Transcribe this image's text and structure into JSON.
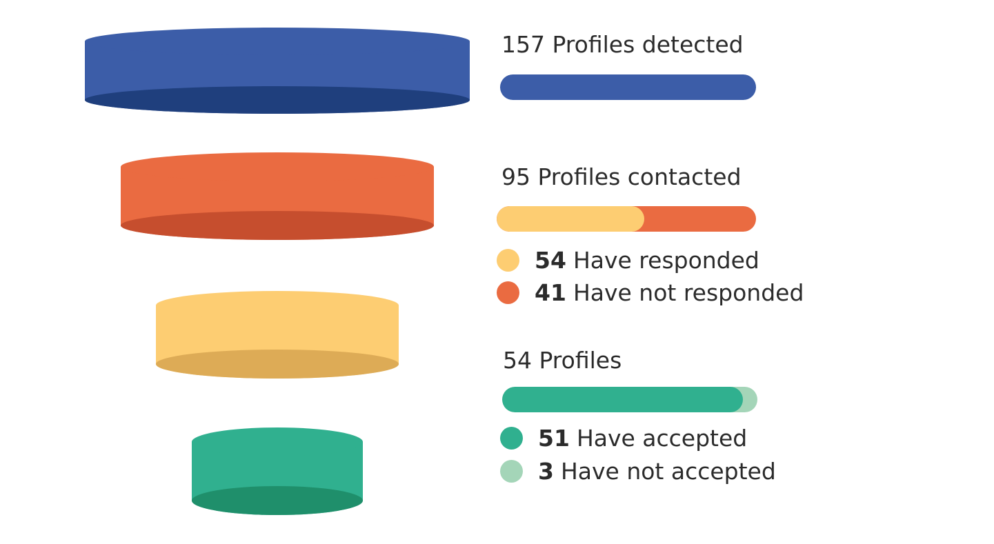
{
  "colors": {
    "blue": "#3c5da8",
    "blue_dark": "#1f3f7d",
    "orange": "#ea6b41",
    "orange_dark": "#c64e2e",
    "yellow": "#fdcd72",
    "yellow_dark": "#ddab56",
    "green": "#30b08f",
    "green_dark": "#1f8f6b",
    "light_green": "#a4d5b8"
  },
  "stages": [
    {
      "title": "157 Profiles detected",
      "total": 157,
      "color": "#3c5da8",
      "dark_color": "#1f3f7d",
      "segments": [
        {
          "value": 157,
          "color": "#3c5da8"
        }
      ],
      "legend": []
    },
    {
      "title": "95 Profiles contacted",
      "total": 95,
      "color": "#ea6b41",
      "dark_color": "#c64e2e",
      "segments": [
        {
          "value": 54,
          "color": "#fdcd72"
        },
        {
          "value": 41,
          "color": "#ea6b41"
        }
      ],
      "legend": [
        {
          "number": "54",
          "text": "Have responded",
          "color": "#fdcd72"
        },
        {
          "number": "41",
          "text": "Have not responded",
          "color": "#ea6b41"
        }
      ]
    },
    {
      "title": "54 Profiles",
      "total": 54,
      "color": "#fdcd72",
      "dark_color": "#ddab56",
      "segments": [
        {
          "value": 51,
          "color": "#30b08f"
        },
        {
          "value": 3,
          "color": "#a4d5b8"
        }
      ],
      "legend": [
        {
          "number": "51",
          "text": "Have accepted",
          "color": "#30b08f"
        },
        {
          "number": "3",
          "text": "Have not accepted",
          "color": "#a4d5b8"
        }
      ]
    },
    {
      "title": "",
      "total": 51,
      "color": "#30b08f",
      "dark_color": "#1f8f6b",
      "segments": [],
      "legend": []
    }
  ]
}
